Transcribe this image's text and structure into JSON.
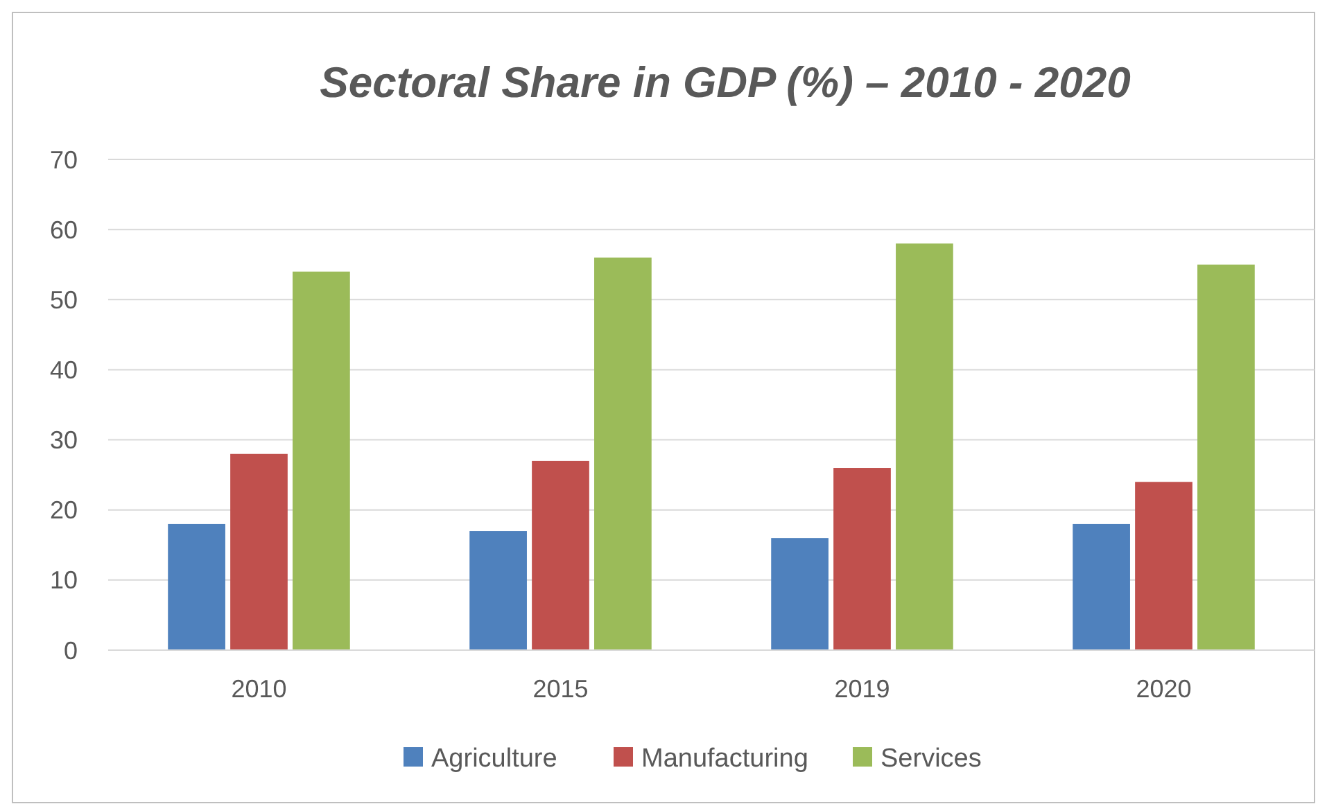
{
  "chart_data": {
    "type": "bar",
    "title": "Sectoral Share in GDP (%) – 2010 - 2020",
    "categories": [
      "2010",
      "2015",
      "2019",
      "2020"
    ],
    "series": [
      {
        "name": "Agriculture",
        "color": "#4f81bd",
        "values": [
          18,
          17,
          16,
          18
        ]
      },
      {
        "name": "Manufacturing",
        "color": "#c0504d",
        "values": [
          28,
          27,
          26,
          24
        ]
      },
      {
        "name": "Services",
        "color": "#9bbb59",
        "values": [
          54,
          56,
          58,
          55
        ]
      }
    ],
    "ylim": [
      0,
      70
    ],
    "yticks": [
      0,
      10,
      20,
      30,
      40,
      50,
      60,
      70
    ],
    "grid": "y",
    "legend": "bottom"
  }
}
